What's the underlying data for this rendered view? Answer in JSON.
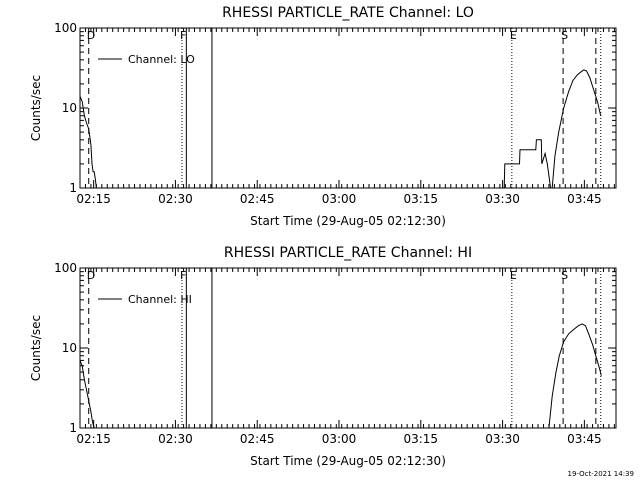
{
  "chart_data": [
    {
      "type": "line",
      "title": "RHESSI PARTICLE_RATE Channel: LO",
      "xlabel": "Start Time (29-Aug-05 02:12:30)",
      "ylabel": "Counts/sec",
      "yscale": "log",
      "ylim": [
        1,
        100
      ],
      "xlim_minutes": [
        0,
        98.3
      ],
      "x_ticks": [
        "02:15",
        "02:30",
        "02:45",
        "03:00",
        "03:15",
        "03:30",
        "03:45"
      ],
      "y_ticks": [
        "1",
        "10",
        "100"
      ],
      "legend": "Channel: LO",
      "legend_position": "top-left",
      "markers": [
        {
          "label": "D",
          "style": "dashed",
          "minute": 1.6
        },
        {
          "label": "F",
          "style": "dotted",
          "minute": 18.7
        },
        {
          "label": "",
          "style": "solid",
          "minute": 19.5
        },
        {
          "label": "",
          "style": "solid",
          "minute": 24.2
        },
        {
          "label": "E",
          "style": "dotted",
          "minute": 79.2
        },
        {
          "label": "S",
          "style": "dashed",
          "minute": 88.6
        },
        {
          "label": "",
          "style": "dashed",
          "minute": 94.6
        },
        {
          "label": "",
          "style": "dotted",
          "minute": 95.5
        }
      ],
      "series": [
        {
          "segments": [
            [
              [
                0,
                14
              ],
              [
                0.4,
                12
              ],
              [
                0.8,
                8
              ],
              [
                1.2,
                6.5
              ],
              [
                1.6,
                5.5
              ],
              [
                2.0,
                3.5
              ],
              [
                2.2,
                2.0
              ],
              [
                2.4,
                1.6
              ],
              [
                2.6,
                1.6
              ],
              [
                2.8,
                1.3
              ],
              [
                3.0,
                1.0
              ]
            ],
            [
              [
                77.8,
                1.0
              ],
              [
                77.9,
                2.0
              ],
              [
                80.6,
                2.0
              ],
              [
                80.7,
                3.0
              ],
              [
                83.6,
                3.0
              ],
              [
                83.7,
                4.0
              ],
              [
                84.6,
                4.0
              ],
              [
                84.7,
                2.0
              ],
              [
                85.3,
                2.7
              ],
              [
                85.7,
                2.0
              ],
              [
                86.3,
                1.0
              ]
            ],
            [
              [
                86.6,
                1.0
              ],
              [
                87.1,
                2.5
              ],
              [
                87.8,
                5
              ],
              [
                88.7,
                10
              ],
              [
                89.6,
                16
              ],
              [
                90.4,
                22
              ],
              [
                91.2,
                26
              ],
              [
                91.8,
                28
              ],
              [
                92.4,
                30
              ],
              [
                92.9,
                29
              ],
              [
                93.5,
                24
              ],
              [
                94.2,
                17
              ],
              [
                94.9,
                12
              ],
              [
                95.5,
                8
              ]
            ]
          ]
        }
      ]
    },
    {
      "type": "line",
      "title": "RHESSI PARTICLE_RATE Channel: HI",
      "xlabel": "Start Time (29-Aug-05 02:12:30)",
      "ylabel": "Counts/sec",
      "yscale": "log",
      "ylim": [
        1,
        100
      ],
      "xlim_minutes": [
        0,
        98.3
      ],
      "x_ticks": [
        "02:15",
        "02:30",
        "02:45",
        "03:00",
        "03:15",
        "03:30",
        "03:45"
      ],
      "y_ticks": [
        "1",
        "10",
        "100"
      ],
      "legend": "Channel: HI",
      "legend_position": "top-left",
      "markers": [
        {
          "label": "D",
          "style": "dashed",
          "minute": 1.6
        },
        {
          "label": "F",
          "style": "dotted",
          "minute": 18.7
        },
        {
          "label": "",
          "style": "solid",
          "minute": 19.5
        },
        {
          "label": "",
          "style": "solid",
          "minute": 24.2
        },
        {
          "label": "E",
          "style": "dotted",
          "minute": 79.2
        },
        {
          "label": "S",
          "style": "dashed",
          "minute": 88.6
        },
        {
          "label": "",
          "style": "dashed",
          "minute": 94.6
        },
        {
          "label": "",
          "style": "dotted",
          "minute": 95.5
        }
      ],
      "series": [
        {
          "segments": [
            [
              [
                0,
                7
              ],
              [
                0.4,
                6
              ],
              [
                0.8,
                4
              ],
              [
                1.2,
                3
              ],
              [
                1.6,
                2.2
              ],
              [
                2.0,
                1.6
              ],
              [
                2.3,
                1.2
              ],
              [
                2.6,
                1.0
              ]
            ],
            [
              [
                86.0,
                1.0
              ],
              [
                86.6,
                2.5
              ],
              [
                87.3,
                5
              ],
              [
                87.9,
                8
              ],
              [
                88.7,
                12
              ],
              [
                89.6,
                15
              ],
              [
                90.5,
                17
              ],
              [
                91.4,
                19
              ],
              [
                92.1,
                20
              ],
              [
                92.7,
                19
              ],
              [
                93.3,
                15
              ],
              [
                94.0,
                11
              ],
              [
                94.6,
                8
              ],
              [
                95.3,
                5.5
              ],
              [
                95.6,
                4.5
              ]
            ]
          ]
        }
      ]
    }
  ],
  "timestamp": "19-Oct-2021 14:39"
}
